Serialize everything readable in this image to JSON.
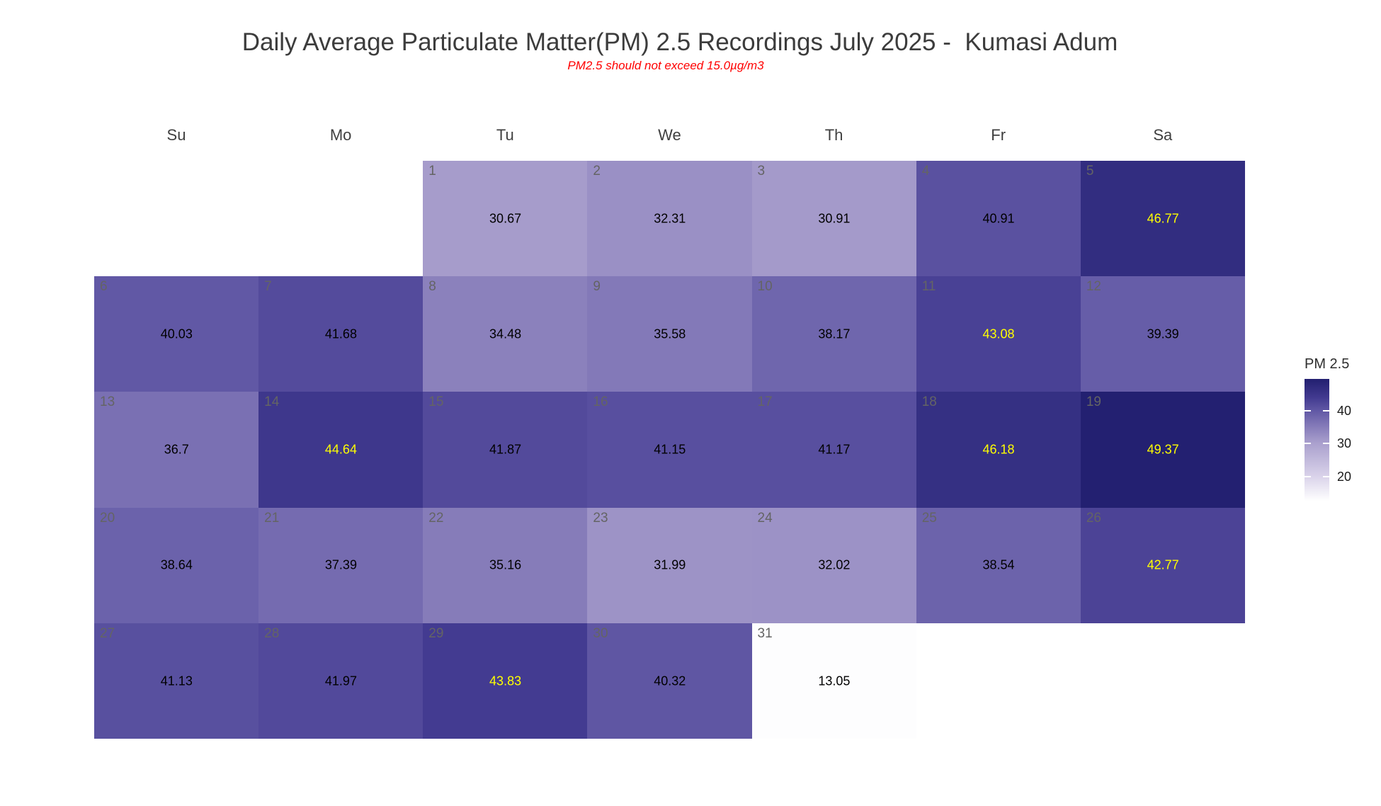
{
  "chart_data": {
    "type": "heatmap",
    "subtype": "calendar-heatmap",
    "title": "Daily Average Particulate Matter(PM) 2.5 Recordings July 2025 -  Kumasi Adum",
    "subtitle": "PM2.5 should not exceed 15.0µg/m3",
    "month": "July 2025",
    "location": "Kumasi Adum",
    "weekday_headers": [
      "Su",
      "Mo",
      "Tu",
      "We",
      "Th",
      "Fr",
      "Sa"
    ],
    "start_weekday_index": 2,
    "legend": {
      "title": "PM 2.5",
      "position": "right",
      "ticks": [
        40,
        30,
        20
      ],
      "domain": [
        12.72,
        49.63
      ]
    },
    "color_scale": {
      "stops": [
        [
          13.0,
          "#FDFDFE"
        ],
        [
          20.0,
          "#DAD3EA"
        ],
        [
          30.0,
          "#ABA1CE"
        ],
        [
          35.0,
          "#877DBA"
        ],
        [
          40.0,
          "#6158A5"
        ],
        [
          44.0,
          "#423A90"
        ],
        [
          49.4,
          "#232071"
        ]
      ]
    },
    "value_text_color": "#000000",
    "value_text_highlight_color": "#FFFF00",
    "days": [
      {
        "day": 1,
        "label": "30.67",
        "value": 30.67,
        "highlight": false
      },
      {
        "day": 2,
        "label": "32.31",
        "value": 32.31,
        "highlight": false
      },
      {
        "day": 3,
        "label": "30.91",
        "value": 30.91,
        "highlight": false
      },
      {
        "day": 4,
        "label": "40.91",
        "value": 40.91,
        "highlight": false
      },
      {
        "day": 5,
        "label": "46.77",
        "value": 46.77,
        "highlight": true
      },
      {
        "day": 6,
        "label": "40.03",
        "value": 40.03,
        "highlight": false
      },
      {
        "day": 7,
        "label": "41.68",
        "value": 41.68,
        "highlight": false
      },
      {
        "day": 8,
        "label": "34.48",
        "value": 34.48,
        "highlight": false
      },
      {
        "day": 9,
        "label": "35.58",
        "value": 35.58,
        "highlight": false
      },
      {
        "day": 10,
        "label": "38.17",
        "value": 38.17,
        "highlight": false
      },
      {
        "day": 11,
        "label": "43.08",
        "value": 43.08,
        "highlight": true
      },
      {
        "day": 12,
        "label": "39.39",
        "value": 39.39,
        "highlight": false
      },
      {
        "day": 13,
        "label": "36.7",
        "value": 36.7,
        "highlight": false
      },
      {
        "day": 14,
        "label": "44.64",
        "value": 44.64,
        "highlight": true
      },
      {
        "day": 15,
        "label": "41.87",
        "value": 41.87,
        "highlight": false
      },
      {
        "day": 16,
        "label": "41.15",
        "value": 41.15,
        "highlight": false
      },
      {
        "day": 17,
        "label": "41.17",
        "value": 41.17,
        "highlight": false
      },
      {
        "day": 18,
        "label": "46.18",
        "value": 46.18,
        "highlight": true
      },
      {
        "day": 19,
        "label": "49.37",
        "value": 49.37,
        "highlight": true
      },
      {
        "day": 20,
        "label": "38.64",
        "value": 38.64,
        "highlight": false
      },
      {
        "day": 21,
        "label": "37.39",
        "value": 37.39,
        "highlight": false
      },
      {
        "day": 22,
        "label": "35.16",
        "value": 35.16,
        "highlight": false
      },
      {
        "day": 23,
        "label": "31.99",
        "value": 31.99,
        "highlight": false
      },
      {
        "day": 24,
        "label": "32.02",
        "value": 32.02,
        "highlight": false
      },
      {
        "day": 25,
        "label": "38.54",
        "value": 38.54,
        "highlight": false
      },
      {
        "day": 26,
        "label": "42.77",
        "value": 42.77,
        "highlight": true
      },
      {
        "day": 27,
        "label": "41.13",
        "value": 41.13,
        "highlight": false
      },
      {
        "day": 28,
        "label": "41.97",
        "value": 41.97,
        "highlight": false
      },
      {
        "day": 29,
        "label": "43.83",
        "value": 43.83,
        "highlight": true
      },
      {
        "day": 30,
        "label": "40.32",
        "value": 40.32,
        "highlight": false
      },
      {
        "day": 31,
        "label": "13.05",
        "value": 13.05,
        "highlight": false
      }
    ]
  }
}
